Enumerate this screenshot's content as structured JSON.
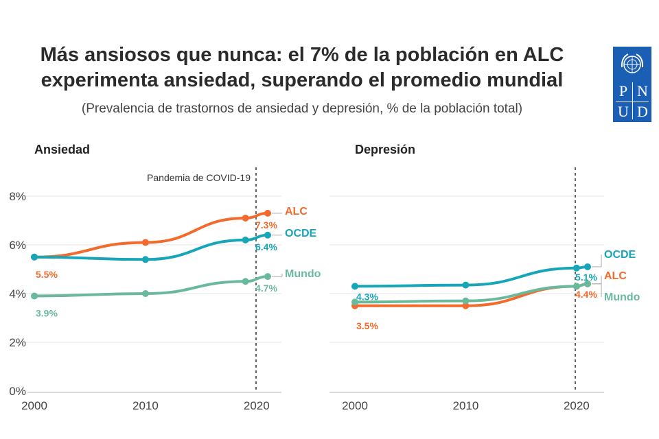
{
  "header": {
    "title_line1": "Más ansiosos que nunca: el 7% de la población en ALC",
    "title_line2": "experimenta ansiedad, superando el promedio mundial",
    "subtitle": "(Prevalencia de trastornos de ansiedad y depresión, % de la población total)"
  },
  "logo": {
    "letters": [
      "P",
      "N",
      "U",
      "D"
    ]
  },
  "colors": {
    "ALC": "#f26b2c",
    "OCDE": "#17a6b8",
    "Mundo": "#6bb99c"
  },
  "chart_data": [
    {
      "type": "line",
      "title": "Ansiedad",
      "x": [
        2000,
        2010,
        2019,
        2021
      ],
      "ylim": [
        0,
        8
      ],
      "xlim": [
        2000,
        2022
      ],
      "yticks": [
        "0%",
        "2%",
        "4%",
        "6%",
        "8%"
      ],
      "xticks": [
        "2000",
        "2010",
        "2020"
      ],
      "annotation": "Pandemia de COVID-19",
      "series": [
        {
          "name": "ALC",
          "values": [
            5.5,
            6.1,
            7.1,
            7.3
          ],
          "start_label": "5.5%",
          "end_label": "7.3%"
        },
        {
          "name": "OCDE",
          "values": [
            5.5,
            5.4,
            6.2,
            6.4
          ],
          "start_label": "",
          "end_label": "6.4%"
        },
        {
          "name": "Mundo",
          "values": [
            3.9,
            4.0,
            4.5,
            4.7
          ],
          "start_label": "3.9%",
          "end_label": "4.7%"
        }
      ]
    },
    {
      "type": "line",
      "title": "Depresión",
      "x": [
        2000,
        2010,
        2020,
        2021
      ],
      "ylim": [
        0,
        8
      ],
      "xlim": [
        2000,
        2022
      ],
      "xticks": [
        "2000",
        "2010",
        "2020"
      ],
      "series": [
        {
          "name": "OCDE",
          "values": [
            4.3,
            4.35,
            5.05,
            5.1
          ],
          "start_label": "4.3%",
          "end_label": "5.1%"
        },
        {
          "name": "ALC",
          "values": [
            3.5,
            3.5,
            4.3,
            4.4
          ],
          "start_label": "3.5%",
          "end_label": "4.4%"
        },
        {
          "name": "Mundo",
          "values": [
            3.65,
            3.7,
            4.3,
            4.4
          ],
          "start_label": "",
          "end_label": ""
        }
      ]
    }
  ]
}
